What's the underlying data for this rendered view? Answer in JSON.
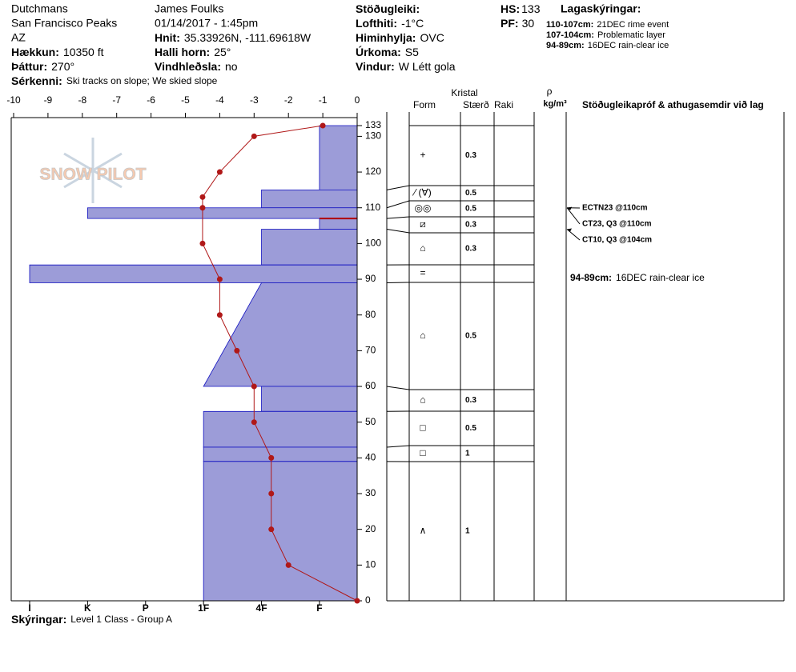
{
  "header": {
    "location": "Dutchmans",
    "range": "San Francisco Peaks",
    "state": "AZ",
    "elevation": {
      "label": "Hækkun:",
      "value": "10350 ft"
    },
    "aspect": {
      "label": "Þáttur:",
      "value": "270°"
    },
    "features": {
      "label": "Sérkenni:",
      "value": "Ski tracks on slope; We skied slope"
    },
    "observer": "James Foulks",
    "datetime": "01/14/2017 - 1:45pm",
    "coords": {
      "label": "Hnit:",
      "value": "35.33926N, -111.69618W"
    },
    "slope": {
      "label": "Halli horn:",
      "value": "25°"
    },
    "wind_loading": {
      "label": "Vindhleðsla:",
      "value": "no"
    },
    "stability": {
      "label": "Stöðugleiki:",
      "value": ""
    },
    "air_temp": {
      "label": "Lofthiti:",
      "value": "-1°C"
    },
    "sky": {
      "label": "Himinhylja:",
      "value": "OVC"
    },
    "precip": {
      "label": "Úrkoma:",
      "value": "S5"
    },
    "wind": {
      "label": "Vindur:",
      "value": "W Létt gola"
    },
    "hs": {
      "label": "HS:",
      "value": 133
    },
    "pf": {
      "label": "PF:",
      "value": 30
    }
  },
  "layer_notes": {
    "title": "Lagaskýringar:",
    "items": [
      {
        "range": "110-107cm:",
        "text": "21DEC rime event"
      },
      {
        "range": "107-104cm:",
        "text": "Problematic layer"
      },
      {
        "range": "94-89cm:",
        "text": "16DEC rain-clear ice"
      }
    ]
  },
  "logo": "SNOW PILOT",
  "temperature_axis": {
    "lim": [
      -10,
      0
    ],
    "ticks": [
      -10,
      -9,
      -8,
      -7,
      -6,
      -5,
      -4,
      -3,
      -2,
      -1,
      0
    ]
  },
  "depth_axis": {
    "lim": [
      0,
      133
    ],
    "ticks": [
      0,
      10,
      20,
      30,
      40,
      50,
      60,
      70,
      80,
      90,
      100,
      110,
      120,
      130,
      133
    ]
  },
  "hardness_axis": {
    "lim": [
      0.35,
      6
    ],
    "ticks": [
      {
        "value": 6,
        "label": "I"
      },
      {
        "value": 5,
        "label": "K"
      },
      {
        "value": 4,
        "label": "P"
      },
      {
        "value": 3,
        "label": "1F"
      },
      {
        "value": 2,
        "label": "4F"
      },
      {
        "value": 1,
        "label": "F"
      }
    ]
  },
  "temperature_profile": {
    "depth": [
      133,
      130,
      120,
      113,
      110,
      100,
      90,
      80,
      70,
      60,
      50,
      40,
      30,
      20,
      10,
      0
    ],
    "temp": [
      -1,
      -3,
      -4,
      -4.5,
      -4.5,
      -4.5,
      -4,
      -4,
      -3.5,
      -3,
      -3,
      -2.5,
      -2.5,
      -2.5,
      -2,
      0
    ]
  },
  "layers": [
    {
      "top": 133,
      "bottom": 115,
      "hardness_top": 1,
      "hardness_bottom": 1,
      "form": "+",
      "size": 0.3
    },
    {
      "top": 115,
      "bottom": 110,
      "hardness_top": 2,
      "hardness_bottom": 2,
      "form": "⁄ (∀)",
      "size": 0.5
    },
    {
      "top": 110,
      "bottom": 107,
      "hardness_top": 5,
      "hardness_bottom": 5,
      "form": "◎◎",
      "size": 0.5
    },
    {
      "top": 107,
      "bottom": 104,
      "hardness_top": 1,
      "hardness_bottom": 1,
      "form": "⧄",
      "size": 0.3,
      "concern": true
    },
    {
      "top": 104,
      "bottom": 94,
      "hardness_top": 2,
      "hardness_bottom": 2,
      "form": "⌂",
      "size": 0.3
    },
    {
      "top": 94,
      "bottom": 89,
      "hardness_top": 6,
      "hardness_bottom": 6,
      "form": "=",
      "size": null
    },
    {
      "top": 89,
      "bottom": 60,
      "hardness_top": 2,
      "hardness_bottom": 3,
      "form": "⌂",
      "size": 0.5
    },
    {
      "top": 60,
      "bottom": 53,
      "hardness_top": 2,
      "hardness_bottom": 2,
      "form": "⌂",
      "size": 0.3
    },
    {
      "top": 53,
      "bottom": 43,
      "hardness_top": 3,
      "hardness_bottom": 3,
      "form": "□",
      "size": 0.5
    },
    {
      "top": 43,
      "bottom": 39,
      "hardness_top": 3,
      "hardness_bottom": 3,
      "form": "□",
      "size": 1
    },
    {
      "top": 39,
      "bottom": 0,
      "hardness_top": 3,
      "hardness_bottom": 3,
      "form": "∧",
      "size": 1
    }
  ],
  "table_headers": {
    "crystal": "Kristal",
    "form": "Form",
    "size": "Stærð",
    "moisture": "Raki",
    "rho": "ρ",
    "density_unit": "kg/m³",
    "tests": "Stöðugleikapróf & athugasemdir við lag"
  },
  "tests": [
    {
      "text": "ECTN23 @110cm",
      "depth": 110
    },
    {
      "text": "CT23, Q3 @110cm",
      "depth": 110
    },
    {
      "text": "CT10, Q3 @104cm",
      "depth": 104
    }
  ],
  "layer_comments": [
    {
      "range": "94-89cm:",
      "text": "16DEC rain-clear ice"
    }
  ],
  "footer": {
    "label": "Skýringar:",
    "value": "Level 1 Class - Group A"
  }
}
